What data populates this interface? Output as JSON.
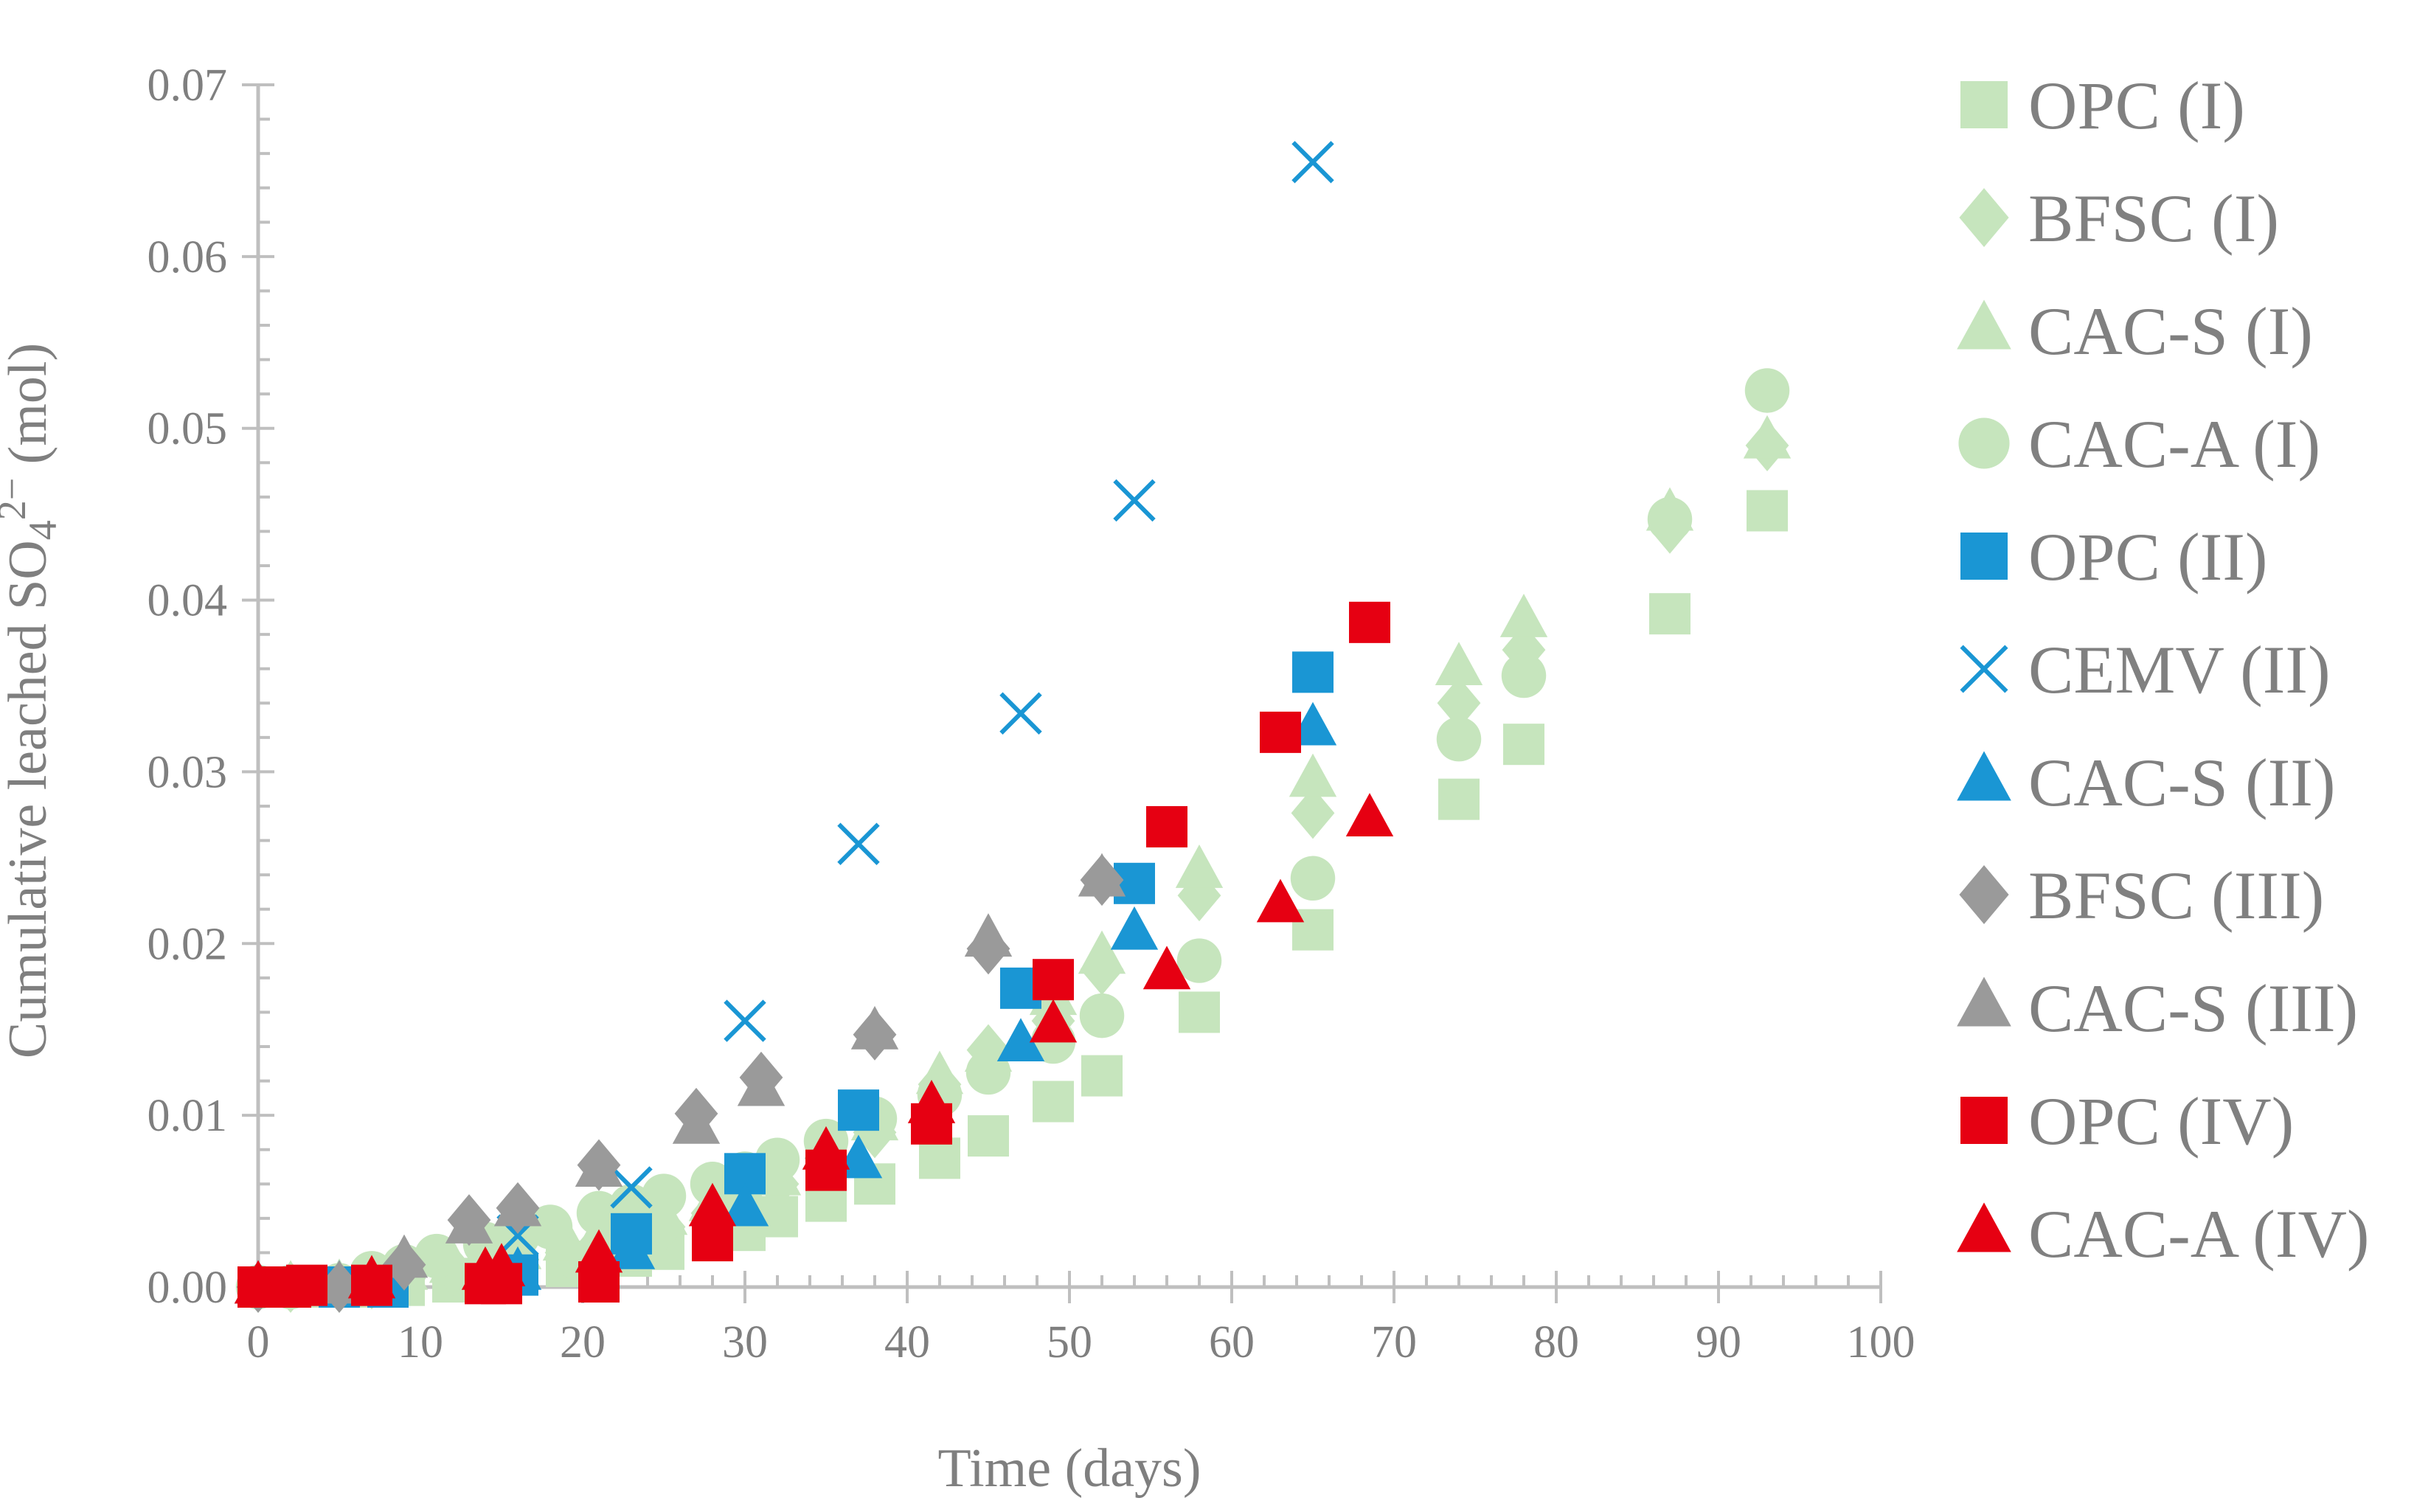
{
  "chart_data": {
    "type": "scatter",
    "title": "",
    "xlabel": "Time (days)",
    "ylabel_parts": {
      "prefix": "Cumulative leached SO",
      "subscript": "4",
      "superscript": "2−",
      "suffix": " (mol)"
    },
    "xlim": [
      0,
      100
    ],
    "ylim": [
      0,
      0.07
    ],
    "x_ticks": [
      0,
      10,
      20,
      30,
      40,
      50,
      60,
      70,
      80,
      90,
      100
    ],
    "x_tick_labels": [
      "0",
      "10",
      "20",
      "30",
      "40",
      "50",
      "60",
      "70",
      "80",
      "90",
      "100"
    ],
    "y_ticks": [
      0,
      0.01,
      0.02,
      0.03,
      0.04,
      0.05,
      0.06,
      0.07
    ],
    "y_tick_labels": [
      "0.00",
      "0.01",
      "0.02",
      "0.03",
      "0.04",
      "0.05",
      "0.06",
      "0.07"
    ],
    "grid": false,
    "legend_position": "right",
    "series": [
      {
        "name": "OPC (I)",
        "marker": "square",
        "color": "#c6e5bd",
        "x": [
          0,
          2,
          3,
          5,
          7,
          9,
          12,
          14,
          16,
          19,
          21,
          23,
          25,
          28,
          30,
          32,
          35,
          38,
          42,
          45,
          49,
          52,
          58,
          65,
          74,
          78,
          87,
          93
        ],
        "y": [
          0,
          0,
          0,
          0,
          0,
          0.0001,
          0.0003,
          0.0005,
          0.0008,
          0.0012,
          0.0015,
          0.0018,
          0.0022,
          0.0028,
          0.0033,
          0.0041,
          0.005,
          0.006,
          0.0075,
          0.0088,
          0.0108,
          0.0123,
          0.016,
          0.0208,
          0.0284,
          0.0316,
          0.0392,
          0.0452
        ]
      },
      {
        "name": "BFSC (I)",
        "marker": "diamond",
        "color": "#c6e5bd",
        "x": [
          0,
          2,
          5,
          7,
          9,
          12,
          14,
          16,
          19,
          21,
          23,
          25,
          28,
          30,
          32,
          35,
          38,
          42,
          45,
          49,
          52,
          58,
          65,
          74,
          78,
          87,
          93
        ],
        "y": [
          0,
          0,
          0,
          0.0002,
          0.0005,
          0.001,
          0.0013,
          0.0016,
          0.002,
          0.0025,
          0.003,
          0.0035,
          0.0043,
          0.005,
          0.006,
          0.0075,
          0.009,
          0.0118,
          0.0138,
          0.0155,
          0.0185,
          0.0228,
          0.0276,
          0.034,
          0.0371,
          0.0442,
          0.049
        ]
      },
      {
        "name": "CAC-S (I)",
        "marker": "triangle",
        "color": "#c6e5bd",
        "x": [
          0,
          2,
          5,
          7,
          9,
          12,
          14,
          16,
          19,
          21,
          23,
          25,
          28,
          30,
          32,
          35,
          38,
          42,
          45,
          49,
          52,
          58,
          65,
          74,
          78,
          87,
          93
        ],
        "y": [
          0,
          0,
          0.0001,
          0.0004,
          0.0008,
          0.0012,
          0.0016,
          0.002,
          0.0025,
          0.003,
          0.0035,
          0.004,
          0.0048,
          0.0055,
          0.0063,
          0.0078,
          0.0095,
          0.0122,
          0.0135,
          0.0168,
          0.0192,
          0.0242,
          0.0295,
          0.036,
          0.0388,
          0.045,
          0.0492
        ]
      },
      {
        "name": "CAC-A (I)",
        "marker": "circle",
        "color": "#c6e5bd",
        "x": [
          0,
          2,
          5,
          7,
          9,
          11,
          14,
          16,
          18,
          21,
          23,
          25,
          28,
          30,
          32,
          35,
          38,
          42,
          45,
          49,
          52,
          58,
          65,
          74,
          78,
          87,
          93
        ],
        "y": [
          0,
          0,
          0.0001,
          0.0008,
          0.0012,
          0.0018,
          0.0025,
          0.003,
          0.0035,
          0.0043,
          0.0047,
          0.0053,
          0.006,
          0.0066,
          0.0074,
          0.0085,
          0.0098,
          0.0112,
          0.0125,
          0.0143,
          0.0158,
          0.019,
          0.0238,
          0.0319,
          0.0356,
          0.0447,
          0.0522
        ]
      },
      {
        "name": "OPC (II)",
        "marker": "square",
        "color": "#1a96d4",
        "x": [
          0,
          2,
          5,
          8,
          16,
          23,
          30,
          37,
          47,
          54,
          65
        ],
        "y": [
          0,
          0,
          0,
          0,
          0.0007,
          0.0031,
          0.0066,
          0.0103,
          0.0174,
          0.0235,
          0.0358
        ]
      },
      {
        "name": "CEMV (II)",
        "marker": "x",
        "color": "#1a96d4",
        "x": [
          16,
          23,
          30,
          37,
          47,
          54,
          65
        ],
        "y": [
          0.003,
          0.0058,
          0.0155,
          0.0258,
          0.0334,
          0.0458,
          0.0655
        ]
      },
      {
        "name": "CAC-S (II)",
        "marker": "triangle",
        "color": "#1a96d4",
        "x": [
          0,
          5,
          16,
          23,
          30,
          37,
          47,
          54,
          65
        ],
        "y": [
          0,
          0,
          0.0008,
          0.002,
          0.0045,
          0.0073,
          0.0141,
          0.0206,
          0.0325
        ]
      },
      {
        "name": "BFSC (III)",
        "marker": "diamond",
        "color": "#9a9a9a",
        "x": [
          0,
          5,
          9,
          13,
          16,
          21,
          27,
          31,
          38,
          45,
          52
        ],
        "y": [
          0,
          0,
          0.0013,
          0.0039,
          0.0046,
          0.0071,
          0.0101,
          0.0122,
          0.0147,
          0.0197,
          0.0237
        ]
      },
      {
        "name": "CAC-S (III)",
        "marker": "triangle",
        "color": "#9a9a9a",
        "x": [
          0,
          5,
          9,
          13,
          16,
          21,
          27,
          31,
          38,
          45,
          52
        ],
        "y": [
          0,
          0,
          0.0015,
          0.0035,
          0.0045,
          0.0068,
          0.0093,
          0.0115,
          0.0148,
          0.0202,
          0.0237
        ]
      },
      {
        "name": "OPC (IV)",
        "marker": "square",
        "color": "#e60012",
        "x": [
          0,
          1,
          2,
          3,
          7,
          14,
          15,
          21,
          28,
          35,
          41.5,
          49,
          56,
          63,
          68.5
        ],
        "y": [
          0,
          0,
          0,
          0.0001,
          0.0001,
          0.0002,
          0.0002,
          0.0003,
          0.0027,
          0.0068,
          0.0095,
          0.0179,
          0.0268,
          0.0323,
          0.0387
        ]
      },
      {
        "name": "CAC-A (IV)",
        "marker": "triangle",
        "color": "#e60012",
        "x": [
          0,
          7,
          14,
          15,
          21,
          28,
          35,
          41.5,
          49,
          56,
          63,
          68.5
        ],
        "y": [
          0,
          0.0003,
          0.0008,
          0.001,
          0.0018,
          0.0045,
          0.0078,
          0.0105,
          0.0152,
          0.0183,
          0.0222,
          0.0272
        ]
      }
    ]
  }
}
